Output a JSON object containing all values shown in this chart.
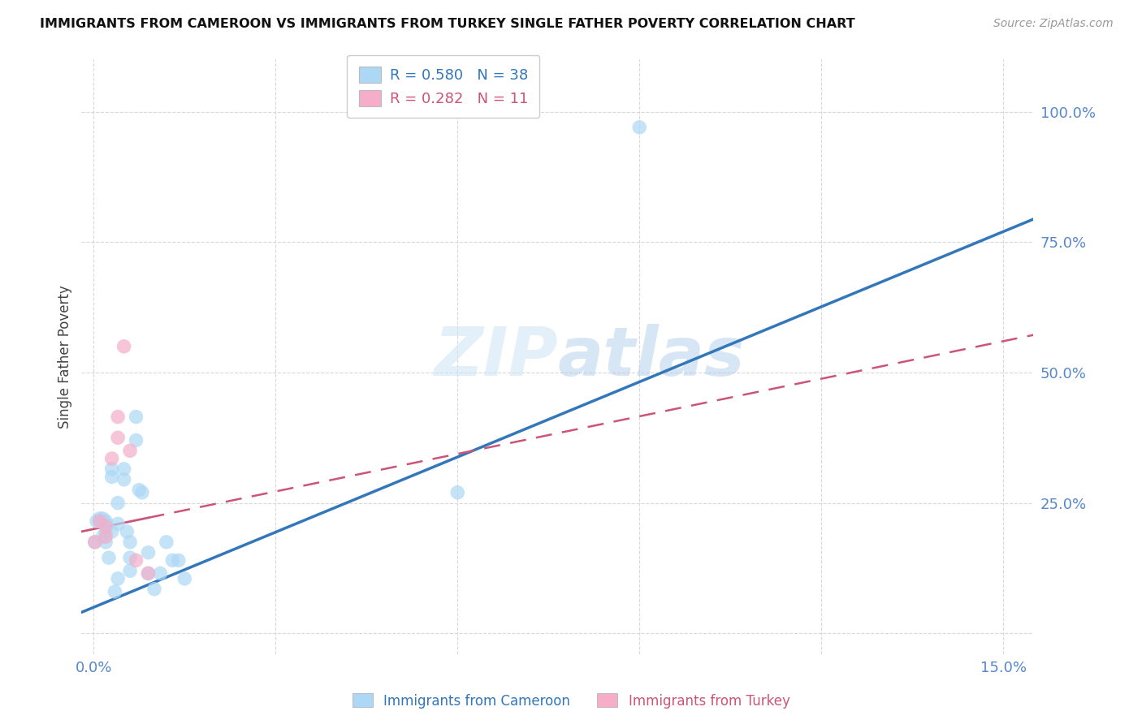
{
  "title": "IMMIGRANTS FROM CAMEROON VS IMMIGRANTS FROM TURKEY SINGLE FATHER POVERTY CORRELATION CHART",
  "source": "Source: ZipAtlas.com",
  "ylabel": "Single Father Poverty",
  "xlim": [
    -0.002,
    0.155
  ],
  "ylim": [
    -0.04,
    1.1
  ],
  "cameroon_color": "#add8f5",
  "turkey_color": "#f5adc8",
  "cameroon_R": 0.58,
  "cameroon_N": 38,
  "turkey_R": 0.282,
  "turkey_N": 11,
  "cameroon_x": [
    0.0002,
    0.0005,
    0.001,
    0.001,
    0.0015,
    0.0015,
    0.002,
    0.002,
    0.002,
    0.002,
    0.0025,
    0.003,
    0.003,
    0.003,
    0.0035,
    0.004,
    0.004,
    0.004,
    0.005,
    0.005,
    0.0055,
    0.006,
    0.006,
    0.006,
    0.007,
    0.007,
    0.0075,
    0.008,
    0.009,
    0.009,
    0.01,
    0.011,
    0.012,
    0.013,
    0.014,
    0.015,
    0.06,
    0.09
  ],
  "cameroon_y": [
    0.175,
    0.215,
    0.215,
    0.22,
    0.22,
    0.185,
    0.215,
    0.21,
    0.195,
    0.175,
    0.145,
    0.195,
    0.3,
    0.315,
    0.08,
    0.25,
    0.21,
    0.105,
    0.315,
    0.295,
    0.195,
    0.175,
    0.145,
    0.12,
    0.415,
    0.37,
    0.275,
    0.27,
    0.155,
    0.115,
    0.085,
    0.115,
    0.175,
    0.14,
    0.14,
    0.105,
    0.27,
    0.97
  ],
  "turkey_x": [
    0.0002,
    0.001,
    0.002,
    0.002,
    0.003,
    0.004,
    0.004,
    0.005,
    0.006,
    0.007,
    0.009
  ],
  "turkey_y": [
    0.175,
    0.215,
    0.205,
    0.185,
    0.335,
    0.415,
    0.375,
    0.55,
    0.35,
    0.14,
    0.115
  ],
  "cameroon_line_color": "#3377bb",
  "turkey_line_color": "#cc5577",
  "watermark_color": "#cce5f5",
  "background_color": "#ffffff",
  "grid_color": "#d8d8d8",
  "x_tick_positions": [
    0.0,
    0.03,
    0.06,
    0.09,
    0.12,
    0.15
  ],
  "x_tick_labels": [
    "0.0%",
    "",
    "",
    "",
    "",
    "15.0%"
  ],
  "y_tick_positions": [
    0.0,
    0.25,
    0.5,
    0.75,
    1.0
  ],
  "y_tick_labels": [
    "",
    "25.0%",
    "50.0%",
    "75.0%",
    "100.0%"
  ],
  "axis_tick_color": "#5588cc",
  "bottom_legend_cam": "Immigrants from Cameroon",
  "bottom_legend_tur": "Immigrants from Turkey",
  "cam_line_intercept": 0.05,
  "cam_line_slope": 4.8,
  "tur_line_intercept": 0.2,
  "tur_line_slope": 2.4
}
